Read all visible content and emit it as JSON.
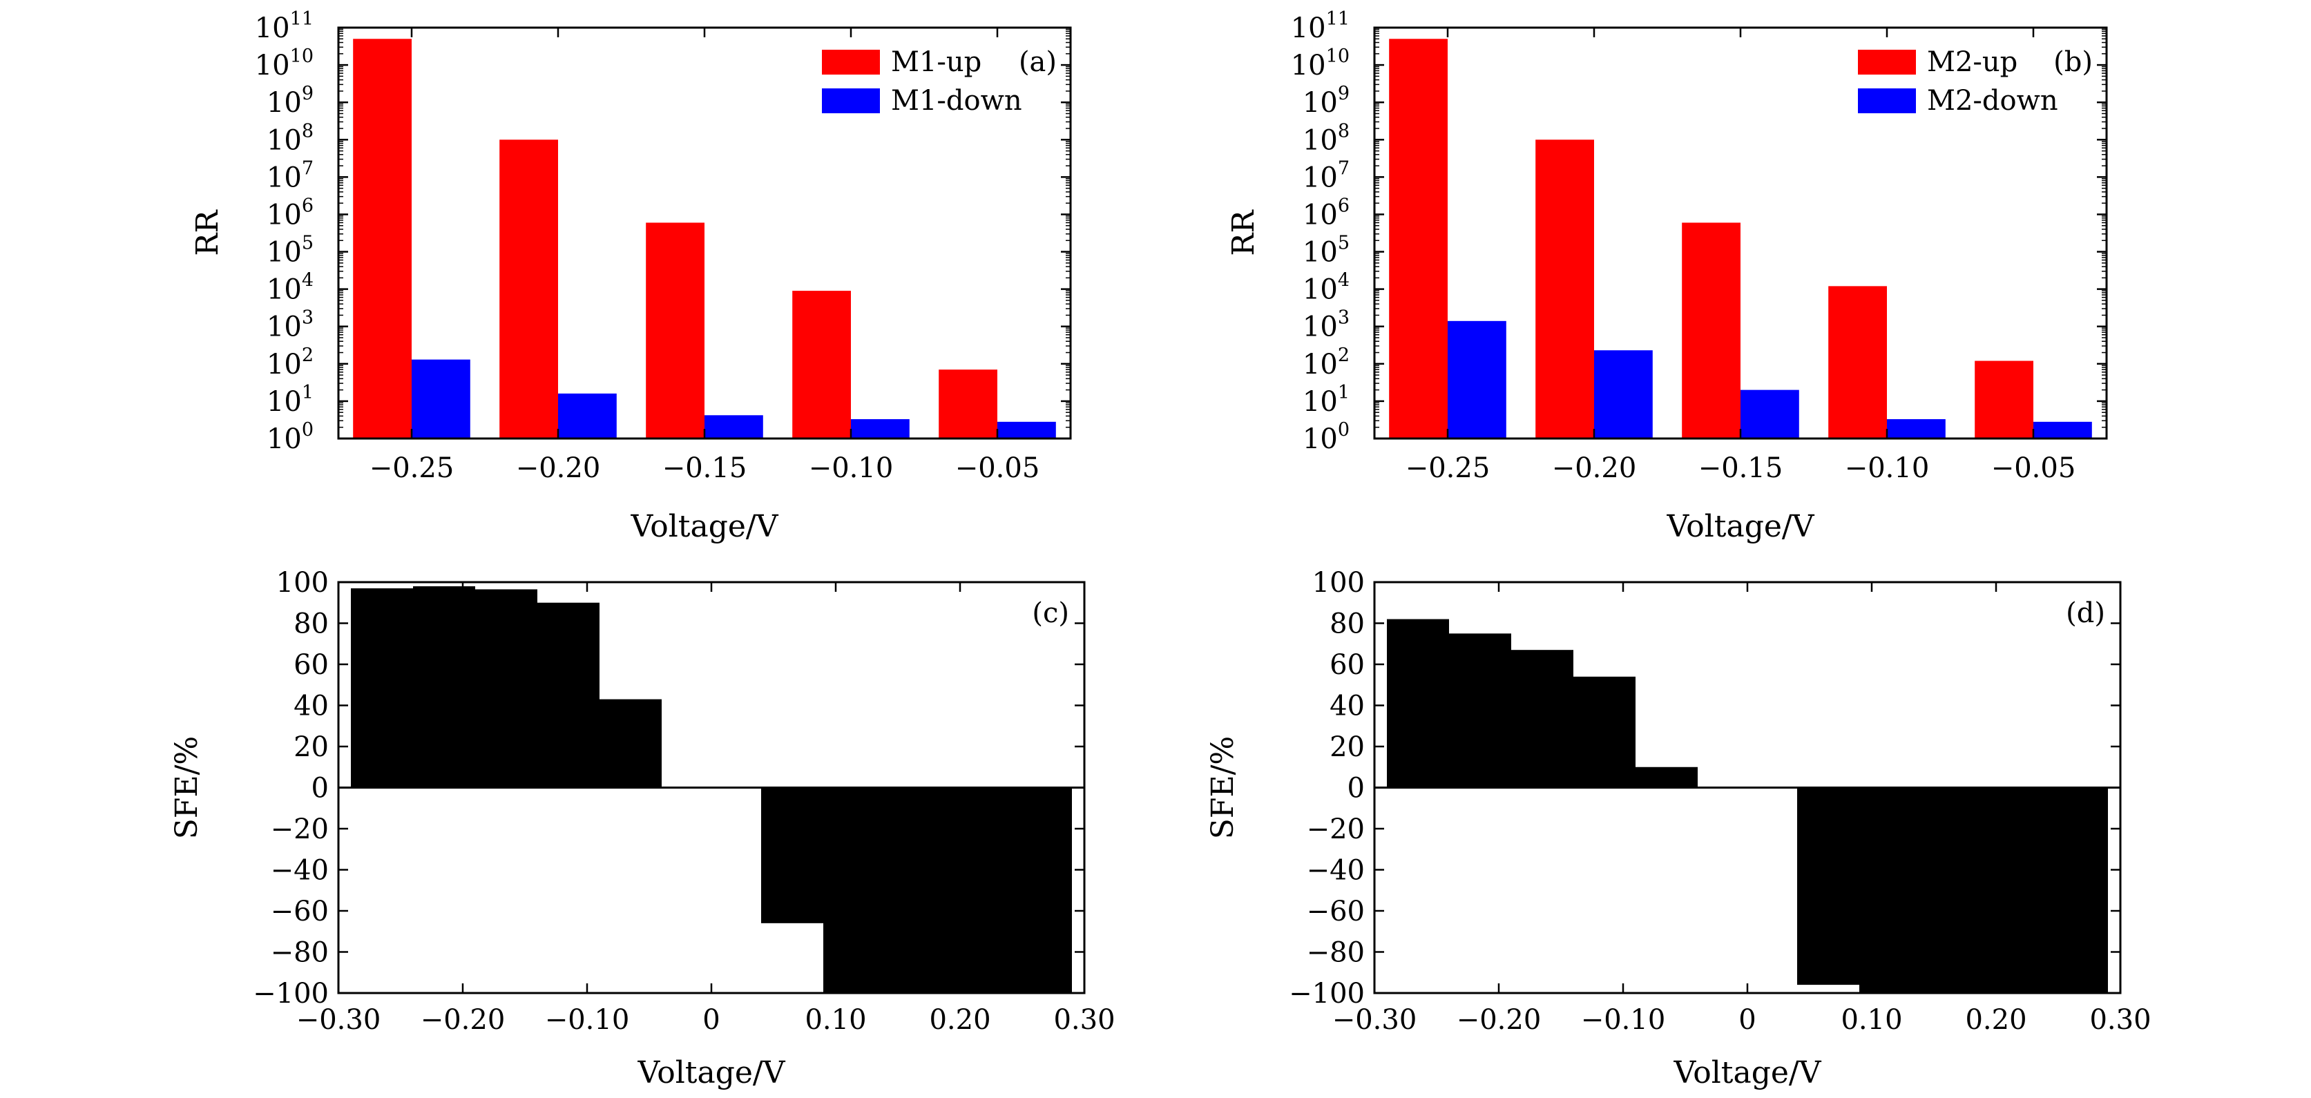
{
  "chart_data": [
    {
      "id": "a",
      "type": "bar",
      "panel_label": "(a)",
      "xlabel": "Voltage/V",
      "ylabel": "RR",
      "yscale": "log",
      "ylim": [
        1,
        100000000000.0
      ],
      "y_ticks": [
        {
          "base": "10",
          "exp": "0"
        },
        {
          "base": "10",
          "exp": "1"
        },
        {
          "base": "10",
          "exp": "2"
        },
        {
          "base": "10",
          "exp": "3"
        },
        {
          "base": "10",
          "exp": "4"
        },
        {
          "base": "10",
          "exp": "5"
        },
        {
          "base": "10",
          "exp": "6"
        },
        {
          "base": "10",
          "exp": "7"
        },
        {
          "base": "10",
          "exp": "8"
        },
        {
          "base": "10",
          "exp": "9"
        },
        {
          "base": "10",
          "exp": "10"
        },
        {
          "base": "10",
          "exp": "11"
        }
      ],
      "categories": [
        "−0.25",
        "−0.20",
        "−0.15",
        "−0.10",
        "−0.05"
      ],
      "legend_position": "top-right",
      "series": [
        {
          "name": "M1-up",
          "color": "#ff0000",
          "values": [
            50000000000.0,
            100000000.0,
            600000.0,
            9000.0,
            70
          ]
        },
        {
          "name": "M1-down",
          "color": "#0000ff",
          "values": [
            130,
            16,
            4.2,
            3.3,
            2.8
          ]
        }
      ]
    },
    {
      "id": "b",
      "type": "bar",
      "panel_label": "(b)",
      "xlabel": "Voltage/V",
      "ylabel": "RR",
      "yscale": "log",
      "ylim": [
        1,
        100000000000.0
      ],
      "y_ticks": [
        {
          "base": "10",
          "exp": "0"
        },
        {
          "base": "10",
          "exp": "1"
        },
        {
          "base": "10",
          "exp": "2"
        },
        {
          "base": "10",
          "exp": "3"
        },
        {
          "base": "10",
          "exp": "4"
        },
        {
          "base": "10",
          "exp": "5"
        },
        {
          "base": "10",
          "exp": "6"
        },
        {
          "base": "10",
          "exp": "7"
        },
        {
          "base": "10",
          "exp": "8"
        },
        {
          "base": "10",
          "exp": "9"
        },
        {
          "base": "10",
          "exp": "10"
        },
        {
          "base": "10",
          "exp": "11"
        }
      ],
      "categories": [
        "−0.25",
        "−0.20",
        "−0.15",
        "−0.10",
        "−0.05"
      ],
      "legend_position": "top-right",
      "series": [
        {
          "name": "M2-up",
          "color": "#ff0000",
          "values": [
            50000000000.0,
            100000000.0,
            600000.0,
            12000.0,
            120
          ]
        },
        {
          "name": "M2-down",
          "color": "#0000ff",
          "values": [
            1400,
            230,
            20,
            3.3,
            2.8
          ]
        }
      ]
    },
    {
      "id": "c",
      "type": "bar",
      "panel_label": "(c)",
      "xlabel": "Voltage/V",
      "ylabel": "SFE/%",
      "ylim": [
        -100,
        100
      ],
      "xlim": [
        -0.3,
        0.3
      ],
      "y_tick_labels": [
        "100",
        "80",
        "60",
        "40",
        "20",
        "0",
        "−20",
        "−40",
        "−60",
        "−80",
        "−100"
      ],
      "y_tick_values": [
        100,
        80,
        60,
        40,
        20,
        0,
        -20,
        -40,
        -60,
        -80,
        -100
      ],
      "x_tick_labels": [
        "−0.30",
        "−0.20",
        "−0.10",
        "0",
        "0.10",
        "0.20",
        "0.30"
      ],
      "x_tick_values": [
        -0.3,
        -0.2,
        -0.1,
        0,
        0.1,
        0.2,
        0.3
      ],
      "bar_color": "#000000",
      "bar_width": 0.05,
      "x": [
        -0.265,
        -0.215,
        -0.165,
        -0.115,
        -0.065,
        0.065,
        0.115,
        0.165,
        0.215,
        0.265
      ],
      "values": [
        97,
        98,
        96.5,
        90,
        43,
        -66,
        -100,
        -100,
        -100,
        -100
      ]
    },
    {
      "id": "d",
      "type": "bar",
      "panel_label": "(d)",
      "xlabel": "Voltage/V",
      "ylabel": "SFE/%",
      "ylim": [
        -100,
        100
      ],
      "xlim": [
        -0.3,
        0.3
      ],
      "y_tick_labels": [
        "100",
        "80",
        "60",
        "40",
        "20",
        "0",
        "−20",
        "−40",
        "−60",
        "−80",
        "−100"
      ],
      "y_tick_values": [
        100,
        80,
        60,
        40,
        20,
        0,
        -20,
        -40,
        -60,
        -80,
        -100
      ],
      "x_tick_labels": [
        "−0.30",
        "−0.20",
        "−0.10",
        "0",
        "0.10",
        "0.20",
        "0.30"
      ],
      "x_tick_values": [
        -0.3,
        -0.2,
        -0.1,
        0,
        0.1,
        0.2,
        0.3
      ],
      "bar_color": "#000000",
      "bar_width": 0.05,
      "x": [
        -0.265,
        -0.215,
        -0.165,
        -0.115,
        -0.065,
        0.065,
        0.115,
        0.165,
        0.215,
        0.265
      ],
      "values": [
        82,
        75,
        67,
        54,
        10,
        -96,
        -100,
        -100,
        -100,
        -100
      ]
    }
  ]
}
